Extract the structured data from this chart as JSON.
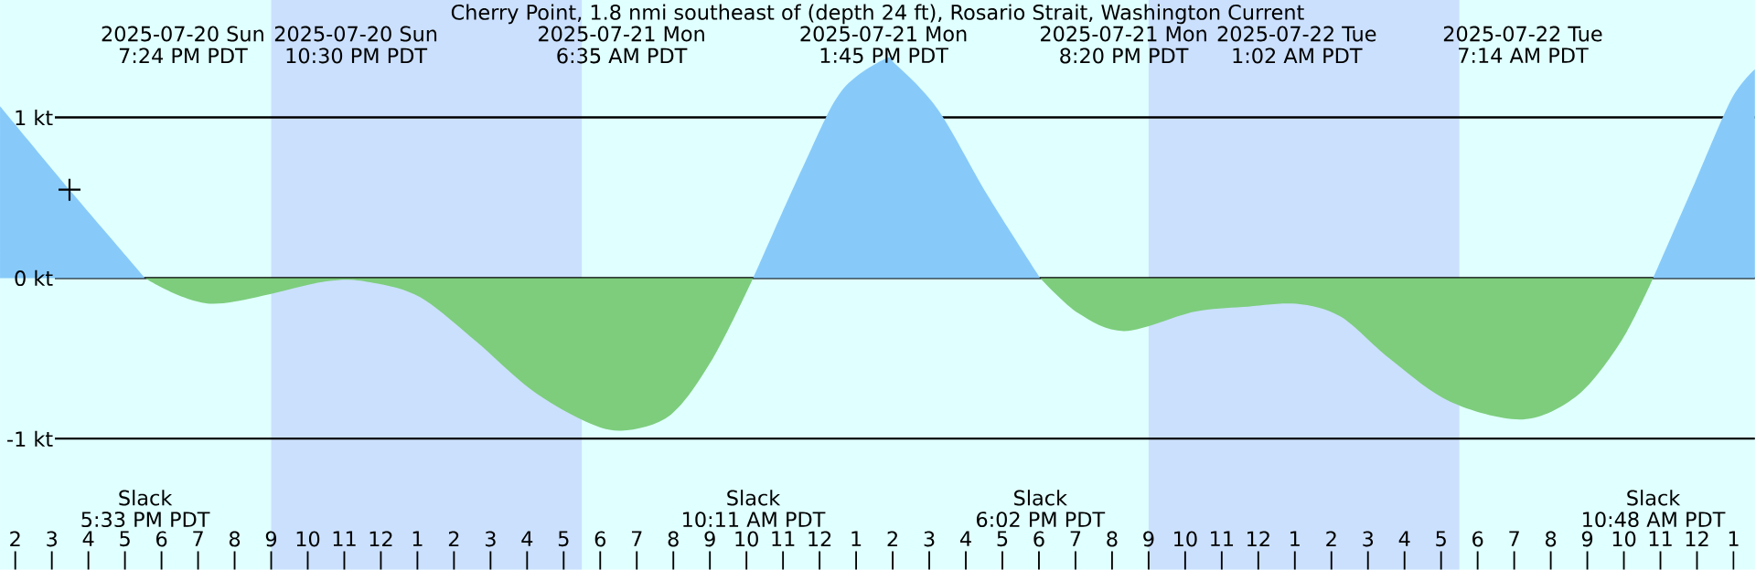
{
  "chart_data": {
    "type": "area",
    "title": "Cherry Point, 1.8 nmi southeast of (depth 24 ft), Rosario Strait, Washington Current",
    "xlim": [
      "2025-07-20T13:35",
      "2025-07-22T13:35"
    ],
    "ylim": [
      -1.815,
      1.731
    ],
    "xticks": [
      {
        "value": "2025-07-20T14:00",
        "label": "2"
      },
      {
        "value": "2025-07-20T15:00",
        "label": "3"
      },
      {
        "value": "2025-07-20T16:00",
        "label": "4"
      },
      {
        "value": "2025-07-20T17:00",
        "label": "5"
      },
      {
        "value": "2025-07-20T18:00",
        "label": "6"
      },
      {
        "value": "2025-07-20T19:00",
        "label": "7"
      },
      {
        "value": "2025-07-20T20:00",
        "label": "8"
      },
      {
        "value": "2025-07-20T21:00",
        "label": "9"
      },
      {
        "value": "2025-07-20T22:00",
        "label": "10"
      },
      {
        "value": "2025-07-20T23:00",
        "label": "11"
      },
      {
        "value": "2025-07-21T00:00",
        "label": "12"
      },
      {
        "value": "2025-07-21T01:00",
        "label": "1"
      },
      {
        "value": "2025-07-21T02:00",
        "label": "2"
      },
      {
        "value": "2025-07-21T03:00",
        "label": "3"
      },
      {
        "value": "2025-07-21T04:00",
        "label": "4"
      },
      {
        "value": "2025-07-21T05:00",
        "label": "5"
      },
      {
        "value": "2025-07-21T06:00",
        "label": "6"
      },
      {
        "value": "2025-07-21T07:00",
        "label": "7"
      },
      {
        "value": "2025-07-21T08:00",
        "label": "8"
      },
      {
        "value": "2025-07-21T09:00",
        "label": "9"
      },
      {
        "value": "2025-07-21T10:00",
        "label": "10"
      },
      {
        "value": "2025-07-21T11:00",
        "label": "11"
      },
      {
        "value": "2025-07-21T12:00",
        "label": "12"
      },
      {
        "value": "2025-07-21T13:00",
        "label": "1"
      },
      {
        "value": "2025-07-21T14:00",
        "label": "2"
      },
      {
        "value": "2025-07-21T15:00",
        "label": "3"
      },
      {
        "value": "2025-07-21T16:00",
        "label": "4"
      },
      {
        "value": "2025-07-21T17:00",
        "label": "5"
      },
      {
        "value": "2025-07-21T18:00",
        "label": "6"
      },
      {
        "value": "2025-07-21T19:00",
        "label": "7"
      },
      {
        "value": "2025-07-21T20:00",
        "label": "8"
      },
      {
        "value": "2025-07-21T21:00",
        "label": "9"
      },
      {
        "value": "2025-07-21T22:00",
        "label": "10"
      },
      {
        "value": "2025-07-21T23:00",
        "label": "11"
      },
      {
        "value": "2025-07-22T00:00",
        "label": "12"
      },
      {
        "value": "2025-07-22T01:00",
        "label": "1"
      },
      {
        "value": "2025-07-22T02:00",
        "label": "2"
      },
      {
        "value": "2025-07-22T03:00",
        "label": "3"
      },
      {
        "value": "2025-07-22T04:00",
        "label": "4"
      },
      {
        "value": "2025-07-22T05:00",
        "label": "5"
      },
      {
        "value": "2025-07-22T06:00",
        "label": "6"
      },
      {
        "value": "2025-07-22T07:00",
        "label": "7"
      },
      {
        "value": "2025-07-22T08:00",
        "label": "8"
      },
      {
        "value": "2025-07-22T09:00",
        "label": "9"
      },
      {
        "value": "2025-07-22T10:00",
        "label": "10"
      },
      {
        "value": "2025-07-22T11:00",
        "label": "11"
      },
      {
        "value": "2025-07-22T12:00",
        "label": "12"
      },
      {
        "value": "2025-07-22T13:00",
        "label": "1"
      }
    ],
    "yticks": [
      {
        "value": 1,
        "label": "1 kt"
      },
      {
        "value": 0,
        "label": "0 kt"
      },
      {
        "value": -1,
        "label": "-1 kt"
      }
    ],
    "grid": "y",
    "bands": [
      {
        "axis": "x",
        "from": "2025-07-20T21:00",
        "to": "2025-07-21T05:30",
        "color": "#cbe0fd"
      },
      {
        "axis": "x",
        "from": "2025-07-21T21:00",
        "to": "2025-07-22T05:30",
        "color": "#cbe0fd"
      }
    ],
    "x": [
      "2025-07-20T13:35",
      "2025-07-20T15:29",
      "2025-07-20T17:33",
      "2025-07-20T19:24",
      "2025-07-20T22:30",
      "2025-07-20T23:48",
      "2025-07-21T01:05",
      "2025-07-21T02:35",
      "2025-07-21T04:05",
      "2025-07-21T05:29",
      "2025-07-21T06:35",
      "2025-07-21T07:56",
      "2025-07-21T09:05",
      "2025-07-21T10:11",
      "2025-07-21T11:35",
      "2025-07-21T12:35",
      "2025-07-21T13:45",
      "2025-07-21T14:05",
      "2025-07-21T15:14",
      "2025-07-21T16:35",
      "2025-07-21T18:02",
      "2025-07-21T19:05",
      "2025-07-21T20:20",
      "2025-07-21T22:15",
      "2025-07-21T23:35",
      "2025-07-22T01:02",
      "2025-07-22T02:15",
      "2025-07-22T03:35",
      "2025-07-22T05:15",
      "2025-07-22T07:14",
      "2025-07-22T08:44",
      "2025-07-22T09:56",
      "2025-07-22T10:48",
      "2025-07-22T11:56",
      "2025-07-22T12:56",
      "2025-07-22T13:35"
    ],
    "series": [
      {
        "color": "#87cafa",
        "values": [
          1.07,
          0.55,
          0,
          null,
          null,
          null,
          null,
          null,
          null,
          null,
          null,
          null,
          null,
          0,
          0.71,
          1.16,
          1.36,
          1.33,
          1.05,
          0.52,
          0,
          null,
          null,
          null,
          null,
          null,
          null,
          null,
          null,
          null,
          null,
          null,
          0,
          0.59,
          1.11,
          1.3
        ]
      },
      {
        "color": "#7dcd7d",
        "values": [
          null,
          null,
          0,
          -0.16,
          -0.02,
          -0.03,
          -0.12,
          -0.39,
          -0.69,
          -0.88,
          -0.95,
          -0.85,
          -0.5,
          0,
          null,
          null,
          null,
          null,
          null,
          null,
          0,
          -0.22,
          -0.33,
          -0.21,
          -0.18,
          -0.16,
          -0.24,
          -0.5,
          -0.77,
          -0.88,
          -0.73,
          -0.39,
          0,
          null,
          null,
          null
        ]
      },
      {
        "type": "scatter",
        "marker": "cross",
        "color": "#000000",
        "x": [
          "2025-07-20T15:29"
        ],
        "values": [
          0.55
        ]
      }
    ],
    "annotations": [
      "2025-07-20 Sun",
      "7:24 PM PDT",
      "2025-07-20 Sun",
      "10:30 PM PDT",
      "2025-07-21 Mon",
      "6:35 AM PDT",
      "2025-07-21 Mon",
      "1:45 PM PDT",
      "2025-07-21 Mon",
      "8:20 PM PDT",
      "2025-07-22 Tue",
      "1:02 AM PDT",
      "2025-07-22 Tue",
      "7:14 AM PDT",
      "Slack",
      "5:33 PM PDT",
      "Slack",
      "10:11 AM PDT",
      "Slack",
      "6:02 PM PDT",
      "Slack",
      "10:48 AM PDT"
    ]
  }
}
